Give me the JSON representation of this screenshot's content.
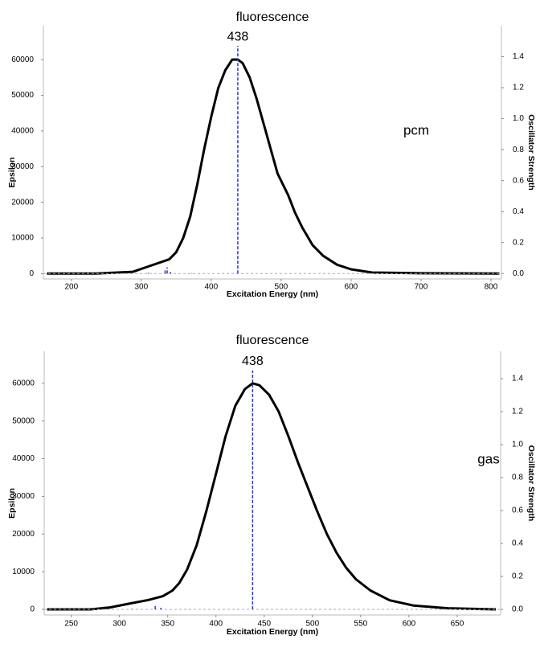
{
  "chart_data": [
    {
      "type": "line",
      "title": "fluorescence",
      "annotation": "pcm",
      "x_label": "Excitation Energy (nm)",
      "y_label": "Epsilon",
      "y2_label": "Oscillator Strength",
      "xlim": [
        160,
        815
      ],
      "xticks": [
        200,
        300,
        400,
        500,
        600,
        700,
        800
      ],
      "ylim": [
        -1500,
        69500
      ],
      "yticks": [
        0,
        10000,
        20000,
        30000,
        40000,
        50000,
        60000
      ],
      "y2lim": [
        -0.035,
        1.6
      ],
      "y2ticks": [
        {
          "value": 0,
          "label": "0.0"
        },
        0.2,
        0.4,
        0.6,
        0.8,
        {
          "value": 1,
          "label": "1.0"
        },
        1.2,
        1.4
      ],
      "series": [
        {
          "color": "#000000",
          "x": [
            165,
            235,
            288,
            310,
            340,
            350,
            360,
            370,
            380,
            390,
            400,
            410,
            420,
            430,
            438,
            445,
            455,
            465,
            475,
            485,
            495,
            510,
            520,
            530,
            545,
            560,
            580,
            600,
            630,
            700,
            812
          ],
          "values": [
            0,
            0,
            500,
            2000,
            4000,
            6000,
            10000,
            16000,
            25000,
            35000,
            44000,
            52000,
            57000,
            60000,
            60000,
            59000,
            55000,
            49000,
            42000,
            35000,
            28000,
            22000,
            17000,
            13000,
            8000,
            5000,
            2500,
            1200,
            300,
            100,
            0
          ]
        },
        {
          "color": "#3333cc",
          "axis": "y2",
          "style": "stick",
          "x": [
            438,
            310,
            334,
            337,
            342,
            372
          ],
          "values": [
            1.47,
            0.005,
            0.02,
            0.04,
            0.01,
            0.003
          ]
        }
      ]
    },
    {
      "type": "line",
      "title": "fluorescence",
      "annotation": "gas",
      "x_label": "Excitation Energy (nm)",
      "y_label": "Epsilon",
      "y2_label": "Oscillator Strength",
      "xlim": [
        222,
        695
      ],
      "xticks": [
        250,
        300,
        350,
        400,
        450,
        500,
        550,
        600,
        650
      ],
      "ylim": [
        -1500,
        68500
      ],
      "yticks": [
        0,
        10000,
        20000,
        30000,
        40000,
        50000,
        60000
      ],
      "y2lim": [
        -0.034,
        1.566
      ],
      "y2ticks": [
        {
          "value": 0,
          "label": "0.0"
        },
        0.2,
        0.4,
        0.6,
        0.8,
        {
          "value": 1,
          "label": "1.0"
        },
        1.2,
        1.4
      ],
      "series": [
        {
          "color": "#000000",
          "x": [
            225,
            270,
            290,
            310,
            330,
            345,
            355,
            362,
            370,
            380,
            390,
            400,
            410,
            420,
            430,
            438,
            445,
            455,
            465,
            475,
            485,
            495,
            505,
            515,
            525,
            535,
            545,
            560,
            580,
            605,
            640,
            690
          ],
          "values": [
            0,
            0,
            500,
            1500,
            2500,
            3500,
            5000,
            7000,
            10500,
            17000,
            26000,
            36000,
            46000,
            54000,
            58500,
            60000,
            59500,
            57000,
            52500,
            46000,
            39000,
            32500,
            26000,
            20000,
            15000,
            11000,
            8000,
            5000,
            2400,
            1000,
            300,
            0
          ]
        },
        {
          "color": "#3333cc",
          "axis": "y2",
          "style": "stick",
          "x": [
            438,
            313,
            337,
            343
          ],
          "values": [
            1.45,
            0.003,
            0.03,
            0.01
          ]
        }
      ]
    }
  ]
}
